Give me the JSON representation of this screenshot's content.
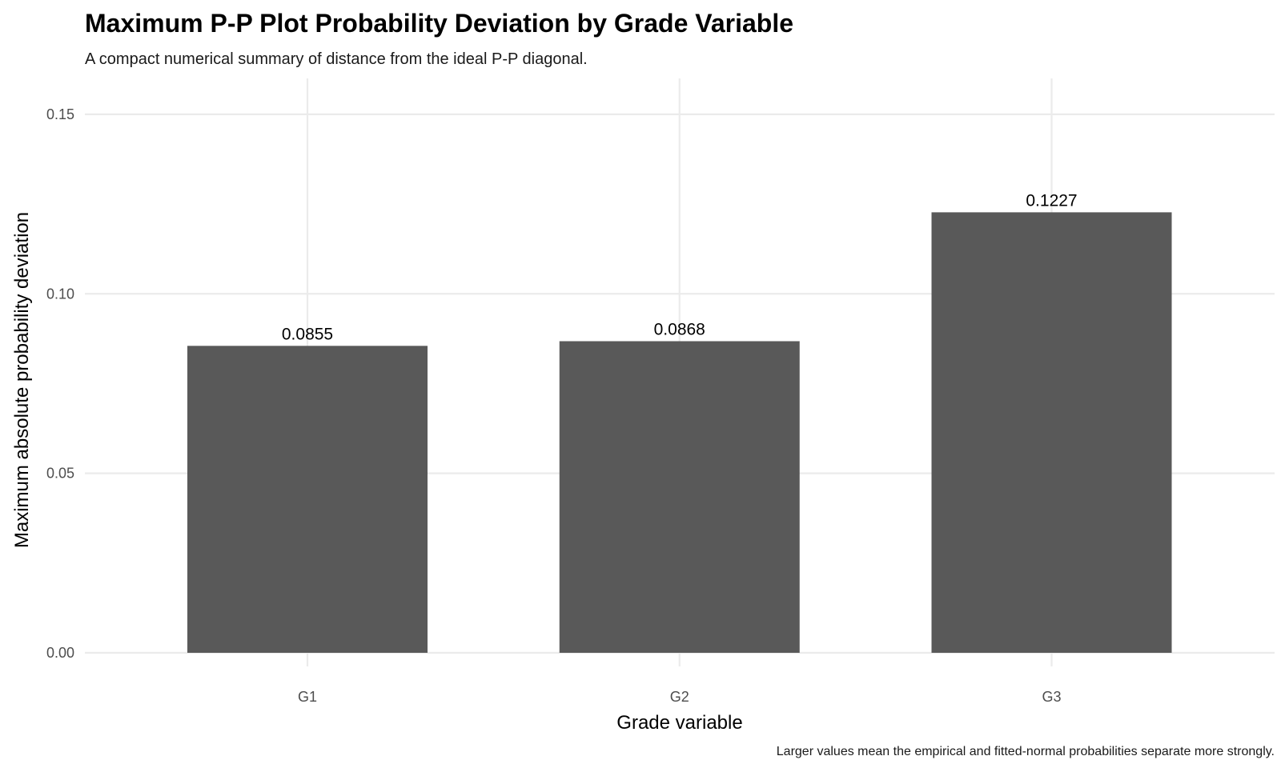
{
  "chart_data": {
    "type": "bar",
    "title": "Maximum P-P Plot Probability Deviation by Grade Variable",
    "subtitle": "A compact numerical summary of distance from the ideal P-P diagonal.",
    "caption": "Larger values mean the empirical and fitted-normal probabilities separate more strongly.",
    "xlabel": "Grade variable",
    "ylabel": "Maximum absolute probability deviation",
    "categories": [
      "G1",
      "G2",
      "G3"
    ],
    "values": [
      0.0855,
      0.0868,
      0.1227
    ],
    "value_labels": [
      "0.0855",
      "0.0868",
      "0.1227"
    ],
    "ylim": [
      0,
      0.16
    ],
    "yticks": [
      0,
      0.05,
      0.1,
      0.15
    ],
    "ytick_labels": [
      "0.00",
      "0.05",
      "0.10",
      "0.15"
    ],
    "grid": true,
    "legend": "none",
    "bar_color": "#595959",
    "grid_color": "#ebebeb"
  }
}
